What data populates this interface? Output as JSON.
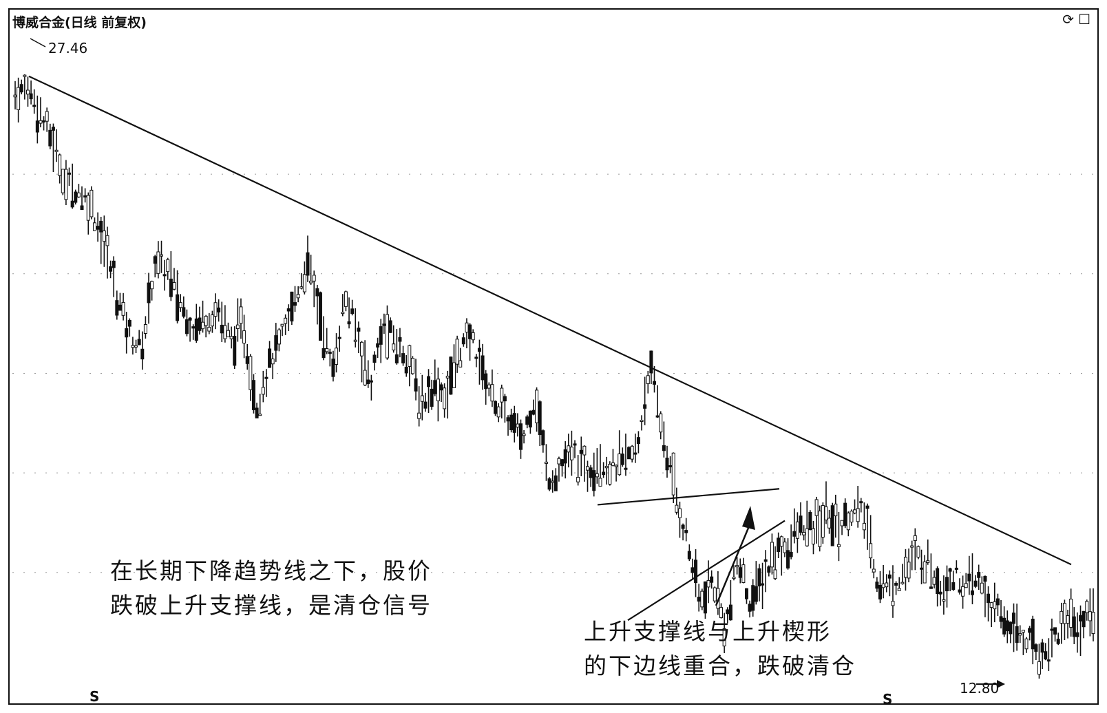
{
  "header": {
    "title": "博威合金(日线 前复权)",
    "icons": [
      "refresh-icon",
      "maximize-icon"
    ]
  },
  "labels": {
    "high_price": "27.46",
    "low_price": "12.80",
    "s_markers": [
      "S",
      "S"
    ]
  },
  "annotations": {
    "left_line1": "在长期下降趋势线之下，股价",
    "left_line2": "跌破上升支撑线，是清仓信号",
    "right_line1": "上升支撑线与上升楔形",
    "right_line2": "的下边线重合，跌破清仓"
  },
  "chart_data": {
    "type": "candlestick",
    "title": "博威合金(日线 前复权)",
    "grid": true,
    "annotated_high": 27.46,
    "annotated_low": 12.8,
    "series_close_path": [
      27.0,
      27.2,
      26.5,
      25.8,
      24.8,
      24.6,
      24.2,
      23.3,
      22.0,
      21.0,
      20.6,
      22.8,
      22.6,
      21.8,
      21.2,
      21.4,
      21.6,
      20.8,
      21.2,
      19.2,
      20.2,
      20.8,
      21.8,
      22.8,
      21.6,
      20.0,
      21.9,
      21.0,
      19.7,
      21.2,
      20.8,
      20.4,
      19.2,
      19.8,
      19.4,
      20.6,
      20.9,
      19.9,
      19.2,
      18.8,
      18.3,
      19.5,
      17.4,
      17.6,
      18.0,
      17.5,
      17.9,
      17.6,
      17.8,
      18.0,
      20.2,
      18.6,
      17.0,
      15.8,
      14.2,
      14.8,
      13.6,
      15.3,
      14.2,
      14.9,
      15.5,
      15.7,
      16.2,
      16.0,
      16.5,
      16.1,
      16.6,
      16.4,
      14.8,
      14.6,
      15.0,
      15.4,
      15.3,
      14.6,
      15.0,
      14.6,
      14.8,
      14.1,
      13.8,
      13.5,
      13.3,
      12.9,
      13.4,
      13.9,
      13.6,
      14.2
    ],
    "trendlines": [
      {
        "name": "long-term-downtrend",
        "from": [
          0,
          27.46
        ],
        "to": [
          1,
          15.2
        ]
      },
      {
        "name": "wedge-upper",
        "from": [
          0,
          16.7
        ],
        "to": [
          1,
          17.1
        ]
      },
      {
        "name": "wedge-lower-support",
        "from": [
          0,
          13.8
        ],
        "to": [
          1,
          16.3
        ]
      }
    ]
  }
}
